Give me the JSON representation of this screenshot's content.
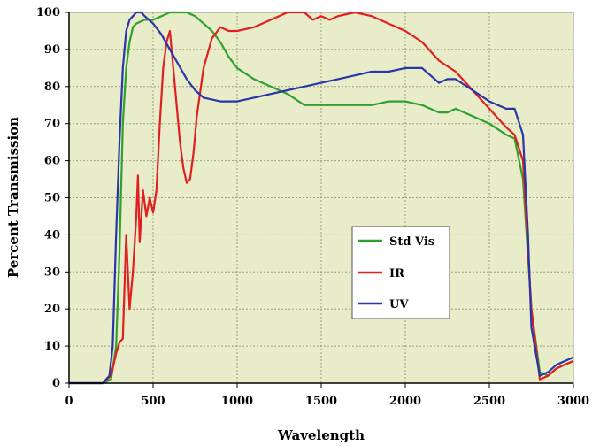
{
  "chart_data": {
    "type": "line",
    "xlabel": "Wavelength",
    "ylabel": "Percent Transmission",
    "xlim": [
      0,
      3000
    ],
    "ylim": [
      0,
      100
    ],
    "x_ticks": [
      "0",
      "500",
      "1000",
      "1500",
      "2000",
      "2500",
      "3000"
    ],
    "y_ticks": [
      "0",
      "10",
      "20",
      "30",
      "40",
      "50",
      "60",
      "70",
      "80",
      "90",
      "100"
    ],
    "grid": true,
    "legend_position": "center-right",
    "plot_background": "#e8ecc8",
    "series": [
      {
        "name": "Std Vis",
        "color": "#2fa12f",
        "points": [
          [
            0,
            0
          ],
          [
            200,
            0
          ],
          [
            250,
            1
          ],
          [
            280,
            10
          ],
          [
            300,
            35
          ],
          [
            320,
            70
          ],
          [
            340,
            85
          ],
          [
            360,
            92
          ],
          [
            380,
            96
          ],
          [
            400,
            97
          ],
          [
            450,
            98
          ],
          [
            500,
            98
          ],
          [
            550,
            99
          ],
          [
            600,
            100
          ],
          [
            650,
            100
          ],
          [
            700,
            100
          ],
          [
            750,
            99
          ],
          [
            800,
            97
          ],
          [
            850,
            95
          ],
          [
            900,
            92
          ],
          [
            950,
            88
          ],
          [
            1000,
            85
          ],
          [
            1100,
            82
          ],
          [
            1200,
            80
          ],
          [
            1300,
            78
          ],
          [
            1400,
            75
          ],
          [
            1500,
            75
          ],
          [
            1600,
            75
          ],
          [
            1700,
            75
          ],
          [
            1800,
            75
          ],
          [
            1900,
            76
          ],
          [
            2000,
            76
          ],
          [
            2100,
            75
          ],
          [
            2200,
            73
          ],
          [
            2250,
            73
          ],
          [
            2300,
            74
          ],
          [
            2350,
            73
          ],
          [
            2400,
            72
          ],
          [
            2500,
            70
          ],
          [
            2600,
            67
          ],
          [
            2650,
            66
          ],
          [
            2700,
            55
          ],
          [
            2750,
            20
          ],
          [
            2800,
            3
          ],
          [
            2850,
            2
          ],
          [
            2900,
            4
          ],
          [
            3000,
            6
          ]
        ]
      },
      {
        "name": "IR",
        "color": "#e02020",
        "points": [
          [
            0,
            0
          ],
          [
            200,
            0
          ],
          [
            250,
            2
          ],
          [
            280,
            8
          ],
          [
            300,
            11
          ],
          [
            320,
            12
          ],
          [
            340,
            40
          ],
          [
            360,
            20
          ],
          [
            380,
            30
          ],
          [
            400,
            45
          ],
          [
            410,
            56
          ],
          [
            420,
            38
          ],
          [
            440,
            52
          ],
          [
            460,
            45
          ],
          [
            480,
            50
          ],
          [
            500,
            46
          ],
          [
            520,
            52
          ],
          [
            540,
            70
          ],
          [
            560,
            85
          ],
          [
            580,
            92
          ],
          [
            600,
            95
          ],
          [
            620,
            85
          ],
          [
            640,
            75
          ],
          [
            660,
            65
          ],
          [
            680,
            58
          ],
          [
            700,
            54
          ],
          [
            720,
            55
          ],
          [
            740,
            62
          ],
          [
            760,
            72
          ],
          [
            800,
            85
          ],
          [
            850,
            93
          ],
          [
            900,
            96
          ],
          [
            950,
            95
          ],
          [
            1000,
            95
          ],
          [
            1100,
            96
          ],
          [
            1200,
            98
          ],
          [
            1300,
            100
          ],
          [
            1400,
            100
          ],
          [
            1450,
            98
          ],
          [
            1500,
            99
          ],
          [
            1550,
            98
          ],
          [
            1600,
            99
          ],
          [
            1700,
            100
          ],
          [
            1800,
            99
          ],
          [
            1900,
            97
          ],
          [
            2000,
            95
          ],
          [
            2100,
            92
          ],
          [
            2200,
            87
          ],
          [
            2300,
            84
          ],
          [
            2400,
            79
          ],
          [
            2500,
            74
          ],
          [
            2600,
            69
          ],
          [
            2650,
            67
          ],
          [
            2700,
            60
          ],
          [
            2750,
            20
          ],
          [
            2800,
            1
          ],
          [
            2850,
            2
          ],
          [
            2900,
            4
          ],
          [
            3000,
            6
          ]
        ]
      },
      {
        "name": "UV",
        "color": "#2a35a8",
        "points": [
          [
            0,
            0
          ],
          [
            200,
            0
          ],
          [
            240,
            2
          ],
          [
            260,
            10
          ],
          [
            280,
            40
          ],
          [
            300,
            65
          ],
          [
            320,
            85
          ],
          [
            340,
            95
          ],
          [
            360,
            98
          ],
          [
            380,
            99
          ],
          [
            400,
            100
          ],
          [
            430,
            100
          ],
          [
            450,
            99
          ],
          [
            500,
            97
          ],
          [
            550,
            94
          ],
          [
            600,
            90
          ],
          [
            650,
            86
          ],
          [
            700,
            82
          ],
          [
            750,
            79
          ],
          [
            800,
            77
          ],
          [
            900,
            76
          ],
          [
            1000,
            76
          ],
          [
            1100,
            77
          ],
          [
            1200,
            78
          ],
          [
            1300,
            79
          ],
          [
            1400,
            80
          ],
          [
            1500,
            81
          ],
          [
            1600,
            82
          ],
          [
            1700,
            83
          ],
          [
            1800,
            84
          ],
          [
            1900,
            84
          ],
          [
            2000,
            85
          ],
          [
            2100,
            85
          ],
          [
            2200,
            81
          ],
          [
            2250,
            82
          ],
          [
            2300,
            82
          ],
          [
            2400,
            79
          ],
          [
            2500,
            76
          ],
          [
            2550,
            75
          ],
          [
            2600,
            74
          ],
          [
            2650,
            74
          ],
          [
            2700,
            67
          ],
          [
            2730,
            40
          ],
          [
            2750,
            15
          ],
          [
            2800,
            2
          ],
          [
            2850,
            3
          ],
          [
            2900,
            5
          ],
          [
            3000,
            7
          ]
        ]
      }
    ]
  }
}
